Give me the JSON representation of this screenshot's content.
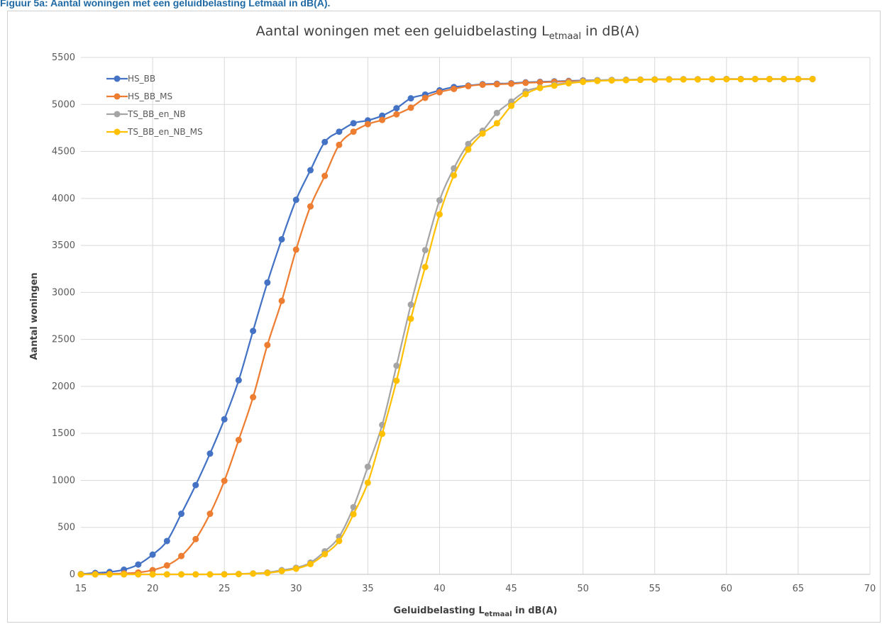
{
  "caption": "Figuur 5a: Aantal woningen met een geluidbelasting Letmaal in dB(A).",
  "chart_data": {
    "type": "line",
    "title": "Aantal woningen met een geluidbelasting Letmaal in dB(A)",
    "title_parts": {
      "pre": "Aantal woningen met een geluidbelasting L",
      "sub": "etmaal",
      "post": " in dB(A)"
    },
    "xlabel": "Geluidbelasting Letmaal in dB(A)",
    "xlabel_parts": {
      "pre": "Geluidbelasting L",
      "sub": "etmaal",
      "post": " in dB(A)"
    },
    "ylabel": "Aantal woningen",
    "xlim": [
      15,
      70
    ],
    "ylim": [
      0,
      5500
    ],
    "xticks": [
      15,
      20,
      25,
      30,
      35,
      40,
      45,
      50,
      55,
      60,
      65,
      70
    ],
    "yticks": [
      0,
      500,
      1000,
      1500,
      2000,
      2500,
      3000,
      3500,
      4000,
      4500,
      5000,
      5500
    ],
    "grid": true,
    "legend_position": "top-left",
    "x": [
      15,
      16,
      17,
      18,
      19,
      20,
      21,
      22,
      23,
      24,
      25,
      26,
      27,
      28,
      29,
      30,
      31,
      32,
      33,
      34,
      35,
      36,
      37,
      38,
      39,
      40,
      41,
      42,
      43,
      44,
      45,
      46,
      47,
      48,
      49,
      50,
      51,
      52,
      53,
      54,
      55,
      56,
      57,
      58,
      59,
      60,
      61,
      62,
      63,
      64,
      65,
      66
    ],
    "series": [
      {
        "name": "HS_BB",
        "color": "#4472c4",
        "values": [
          3,
          15,
          25,
          50,
          105,
          210,
          355,
          645,
          950,
          1285,
          1650,
          2065,
          2590,
          3105,
          3565,
          3985,
          4300,
          4600,
          4710,
          4800,
          4830,
          4880,
          4960,
          5065,
          5105,
          5150,
          5185,
          5200,
          5215,
          5220,
          5225,
          5235,
          5240,
          5245,
          5250,
          5255,
          5258,
          5260,
          5262,
          5264,
          5266,
          5268,
          5268,
          5268,
          5268,
          5270,
          5270,
          5270,
          5270,
          5270,
          5270,
          5270
        ]
      },
      {
        "name": "HS_BB_MS",
        "color": "#ed7d31",
        "values": [
          0,
          3,
          5,
          10,
          20,
          45,
          95,
          195,
          375,
          645,
          995,
          1430,
          1885,
          2440,
          2910,
          3455,
          3915,
          4240,
          4570,
          4710,
          4790,
          4835,
          4895,
          4965,
          5070,
          5130,
          5165,
          5195,
          5210,
          5215,
          5220,
          5230,
          5235,
          5240,
          5245,
          5250,
          5255,
          5258,
          5260,
          5262,
          5264,
          5266,
          5268,
          5268,
          5268,
          5270,
          5270,
          5270,
          5270,
          5270,
          5270,
          5270
        ]
      },
      {
        "name": "TS_BB_en_NB",
        "color": "#a5a5a5",
        "values": [
          0,
          0,
          0,
          0,
          0,
          0,
          0,
          0,
          0,
          0,
          2,
          5,
          10,
          20,
          45,
          70,
          125,
          245,
          400,
          715,
          1145,
          1590,
          2220,
          2870,
          3450,
          3980,
          4320,
          4580,
          4720,
          4910,
          5030,
          5140,
          5180,
          5210,
          5230,
          5245,
          5255,
          5260,
          5262,
          5264,
          5266,
          5268,
          5268,
          5268,
          5268,
          5270,
          5270,
          5270,
          5270,
          5270,
          5270,
          5270
        ]
      },
      {
        "name": "TS_BB_en_NB_MS",
        "color": "#ffc000",
        "values": [
          0,
          0,
          0,
          0,
          0,
          0,
          0,
          0,
          0,
          0,
          0,
          3,
          8,
          15,
          35,
          60,
          110,
          215,
          355,
          640,
          975,
          1495,
          2060,
          2720,
          3270,
          3830,
          4245,
          4520,
          4690,
          4800,
          4985,
          5110,
          5175,
          5200,
          5225,
          5240,
          5250,
          5255,
          5258,
          5262,
          5264,
          5266,
          5266,
          5266,
          5268,
          5268,
          5268,
          5270,
          5270,
          5270,
          5270,
          5270
        ]
      }
    ]
  }
}
